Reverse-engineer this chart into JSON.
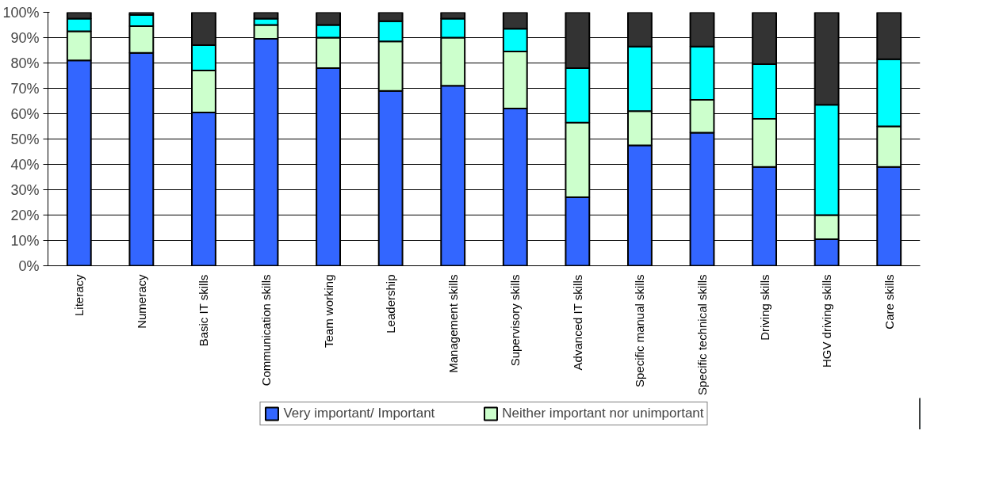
{
  "chart_data": {
    "type": "bar",
    "stacked": true,
    "categories": [
      "Literacy",
      "Numeracy",
      "Basic IT skills",
      "Communication skills",
      "Team working",
      "Leadership",
      "Management skills",
      "Supervisory skills",
      "Advanced IT skills",
      "Specific manual skills",
      "Specific technical skills",
      "Driving skills",
      "HGV driving skills",
      "Care skills"
    ],
    "series": [
      {
        "name": "Very important/ Important",
        "color": "#3366ff",
        "values": [
          81,
          84,
          60.5,
          89.5,
          78,
          69,
          71,
          62,
          27,
          47.5,
          52.5,
          39,
          10.5,
          39
        ]
      },
      {
        "name": "Neither important nor unimportant",
        "color": "#ccffcc",
        "values": [
          11.5,
          10.5,
          16.5,
          5.5,
          12,
          19.5,
          19,
          22.5,
          29.5,
          13.5,
          13,
          19,
          9.5,
          16
        ]
      },
      {
        "color": "#00ffff",
        "values": [
          5,
          4.5,
          10,
          2.5,
          5,
          8,
          7.5,
          9,
          21.5,
          25.5,
          21,
          21.5,
          43.5,
          26.5
        ]
      },
      {
        "color": "#333333",
        "values": [
          2.5,
          1,
          13,
          2.5,
          5,
          3.5,
          2.5,
          6.5,
          22,
          13.5,
          13.5,
          20.5,
          36.5,
          18.5
        ]
      }
    ],
    "ylim": [
      0,
      100
    ],
    "yticks": [
      {
        "value": 0,
        "label": "0%"
      },
      {
        "value": 10,
        "label": "10%"
      },
      {
        "value": 20,
        "label": "20%"
      },
      {
        "value": 30,
        "label": "30%"
      },
      {
        "value": 40,
        "label": "40%"
      },
      {
        "value": 50,
        "label": "50%"
      },
      {
        "value": 60,
        "label": "60%"
      },
      {
        "value": 70,
        "label": "70%"
      },
      {
        "value": 80,
        "label": "80%"
      },
      {
        "value": 90,
        "label": "90%"
      },
      {
        "value": 100,
        "label": "100%"
      }
    ],
    "grid": "y",
    "legend": "bottom"
  }
}
